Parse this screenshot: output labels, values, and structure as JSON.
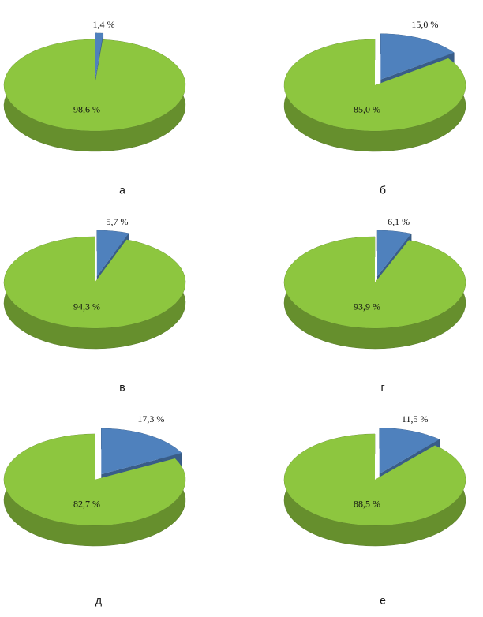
{
  "chart_data": [
    {
      "type": "pie",
      "title": "а",
      "values": [
        1.4,
        98.6
      ],
      "value_labels": [
        "1,4 %",
        "98,6 %"
      ],
      "colors": [
        "#4f81bd",
        "#8dc63f"
      ]
    },
    {
      "type": "pie",
      "title": "б",
      "values": [
        15.0,
        85.0
      ],
      "value_labels": [
        "15,0 %",
        "85,0 %"
      ],
      "colors": [
        "#4f81bd",
        "#8dc63f"
      ]
    },
    {
      "type": "pie",
      "title": "в",
      "values": [
        5.7,
        94.3
      ],
      "value_labels": [
        "5,7 %",
        "94,3 %"
      ],
      "colors": [
        "#4f81bd",
        "#8dc63f"
      ]
    },
    {
      "type": "pie",
      "title": "г",
      "values": [
        6.1,
        93.9
      ],
      "value_labels": [
        "6,1 %",
        "93,9 %"
      ],
      "colors": [
        "#4f81bd",
        "#8dc63f"
      ]
    },
    {
      "type": "pie",
      "title": "д",
      "values": [
        17.3,
        82.7
      ],
      "value_labels": [
        "17,3 %",
        "82,7 %"
      ],
      "colors": [
        "#4f81bd",
        "#8dc63f"
      ]
    },
    {
      "type": "pie",
      "title": "е",
      "values": [
        11.5,
        88.5
      ],
      "value_labels": [
        "11,5 %",
        "88,5 %"
      ],
      "colors": [
        "#4f81bd",
        "#8dc63f"
      ]
    }
  ]
}
